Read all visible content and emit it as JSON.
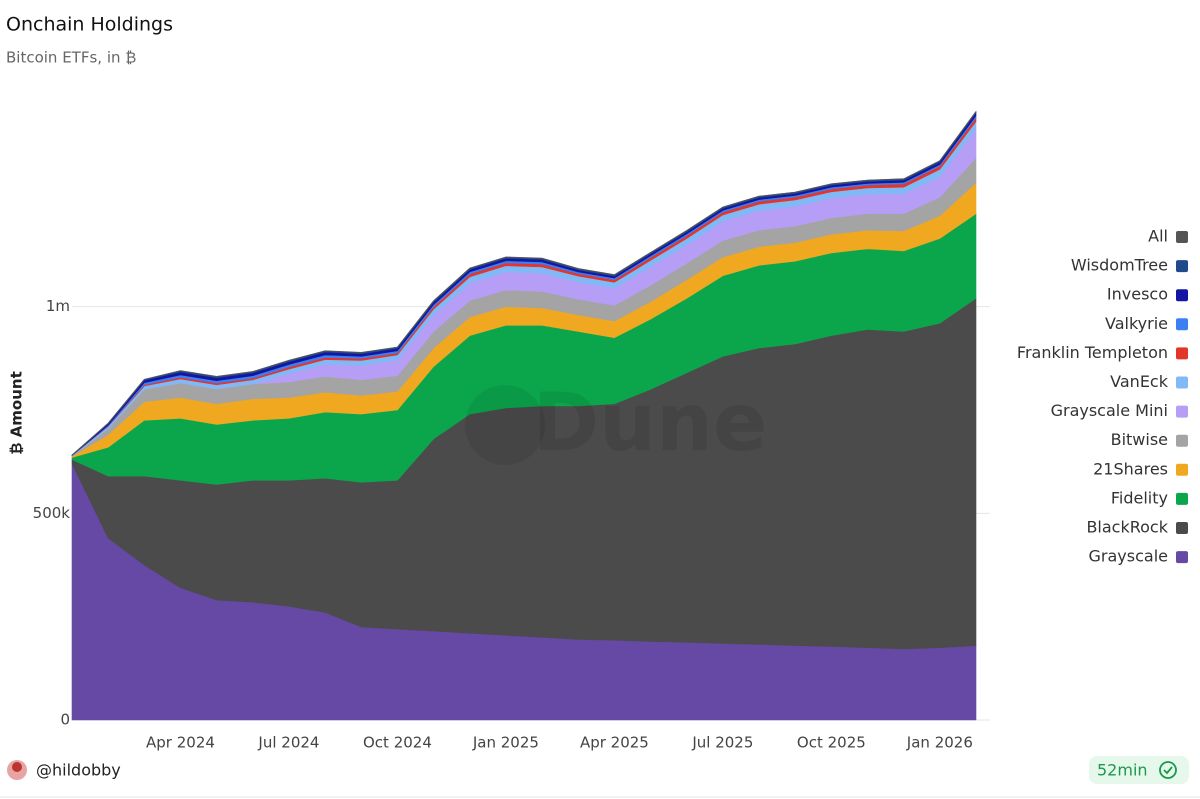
{
  "chart_data": {
    "type": "stacked-area",
    "title": "Onchain Holdings",
    "subtitle": "Bitcoin ETFs, in ₿",
    "y_label": "₿ Amount",
    "watermark": "Dune",
    "x": [
      "2024-01",
      "2024-02",
      "2024-03",
      "2024-04",
      "2024-05",
      "2024-06",
      "2024-07",
      "2024-08",
      "2024-09",
      "2024-10",
      "2024-11",
      "2024-12",
      "2025-01",
      "2025-02",
      "2025-03",
      "2025-04",
      "2025-05",
      "2025-06",
      "2025-07",
      "2025-08",
      "2025-09",
      "2025-10",
      "2025-11",
      "2025-12",
      "2026-01",
      "2026-02"
    ],
    "xlim": [
      "2024-01",
      "2026-02"
    ],
    "xticks": [
      {
        "value": "2024-04",
        "label": "Apr 2024"
      },
      {
        "value": "2024-07",
        "label": "Jul 2024"
      },
      {
        "value": "2024-10",
        "label": "Oct 2024"
      },
      {
        "value": "2025-01",
        "label": "Jan 2025"
      },
      {
        "value": "2025-04",
        "label": "Apr 2025"
      },
      {
        "value": "2025-07",
        "label": "Jul 2025"
      },
      {
        "value": "2025-10",
        "label": "Oct 2025"
      },
      {
        "value": "2026-01",
        "label": "Jan 2026"
      }
    ],
    "ylim": [
      0,
      1500000
    ],
    "yticks": [
      0,
      {
        "value": 500000,
        "label": "500k"
      },
      {
        "value": 1000000,
        "label": "1m"
      }
    ],
    "grid": true,
    "legend": "right",
    "series": [
      {
        "name": "Grayscale",
        "color": "#6549a5",
        "values": [
          620000,
          440000,
          375000,
          320000,
          290000,
          285000,
          275000,
          260000,
          225000,
          220000,
          215000,
          210000,
          205000,
          200000,
          195000,
          193000,
          190000,
          188000,
          185000,
          183000,
          180000,
          178000,
          175000,
          172000,
          175000,
          180000
        ]
      },
      {
        "name": "BlackRock",
        "color": "#4b4b4b",
        "values": [
          10000,
          150000,
          215000,
          260000,
          280000,
          295000,
          305000,
          325000,
          350000,
          360000,
          465000,
          530000,
          550000,
          560000,
          565000,
          572000,
          610000,
          652000,
          695000,
          717000,
          730000,
          752000,
          770000,
          768000,
          785000,
          840000
        ]
      },
      {
        "name": "Fidelity",
        "color": "#0ba64c",
        "values": [
          5000,
          70000,
          135000,
          150000,
          145000,
          145000,
          150000,
          160000,
          165000,
          170000,
          175000,
          190000,
          200000,
          195000,
          180000,
          160000,
          170000,
          180000,
          195000,
          200000,
          200000,
          200000,
          195000,
          195000,
          205000,
          205000
        ]
      },
      {
        "name": "21Shares",
        "color": "#f0a820",
        "values": [
          3000,
          30000,
          45000,
          50000,
          50000,
          52000,
          50000,
          48000,
          45000,
          45000,
          45000,
          45000,
          45000,
          42000,
          40000,
          40000,
          42000,
          45000,
          45000,
          45000,
          45000,
          45000,
          45000,
          48000,
          55000,
          75000
        ]
      },
      {
        "name": "Bitwise",
        "color": "#a4a4a4",
        "values": [
          1000,
          15000,
          30000,
          35000,
          36000,
          36000,
          38000,
          38000,
          38000,
          38000,
          40000,
          40000,
          40000,
          40000,
          38000,
          38000,
          40000,
          40000,
          40000,
          40000,
          40000,
          40000,
          40000,
          42000,
          45000,
          60000
        ]
      },
      {
        "name": "Grayscale Mini",
        "color": "#b69df6",
        "values": [
          0,
          0,
          0,
          0,
          0,
          0,
          20000,
          30000,
          35000,
          38000,
          40000,
          42000,
          44000,
          44000,
          42000,
          42000,
          45000,
          45000,
          47000,
          48000,
          48000,
          48000,
          47000,
          48000,
          50000,
          70000
        ]
      },
      {
        "name": "VanEck",
        "color": "#80b9f5",
        "values": [
          1000,
          5000,
          8000,
          10000,
          10000,
          10000,
          11000,
          11000,
          12000,
          12000,
          14000,
          15000,
          15000,
          15000,
          14000,
          14000,
          15000,
          15000,
          15000,
          15000,
          15000,
          15000,
          15000,
          16000,
          17000,
          18000
        ]
      },
      {
        "name": "Franklin Templeton",
        "color": "#e3362a",
        "values": [
          0,
          1000,
          3000,
          4000,
          4000,
          4000,
          5000,
          5000,
          5000,
          5000,
          6000,
          7000,
          7000,
          7000,
          6000,
          6000,
          7000,
          7000,
          7000,
          7000,
          7000,
          7000,
          7000,
          8000,
          8000,
          9000
        ]
      },
      {
        "name": "Valkyrie",
        "color": "#3b7ff2",
        "values": [
          0,
          2000,
          5000,
          6000,
          6000,
          6000,
          6000,
          6000,
          5000,
          5000,
          5000,
          5000,
          5000,
          5000,
          4000,
          4000,
          4000,
          4000,
          4000,
          4000,
          4000,
          4000,
          4000,
          4000,
          4000,
          5000
        ]
      },
      {
        "name": "Invesco",
        "color": "#1515a3",
        "values": [
          1000,
          4000,
          6000,
          7000,
          7000,
          7000,
          7000,
          7000,
          6000,
          6000,
          6000,
          6000,
          6000,
          6000,
          5000,
          5000,
          5000,
          5000,
          5000,
          5000,
          5000,
          5000,
          5000,
          5000,
          6000,
          7000
        ]
      },
      {
        "name": "WisdomTree",
        "color": "#1f4b8c",
        "values": [
          0,
          1000,
          2000,
          3000,
          3000,
          3000,
          3000,
          3000,
          3000,
          3000,
          3000,
          3000,
          3000,
          3000,
          3000,
          3000,
          3000,
          3000,
          3000,
          3000,
          3000,
          3000,
          3000,
          3000,
          3000,
          3000
        ]
      },
      {
        "name": "All",
        "color": "#555555",
        "line": true,
        "values": [
          641000,
          718000,
          824000,
          845000,
          831000,
          843000,
          870000,
          893000,
          889000,
          902000,
          1014000,
          1093000,
          1120000,
          1117000,
          1092000,
          1077000,
          1131000,
          1184000,
          1241000,
          1267000,
          1277000,
          1297000,
          1306000,
          1309000,
          1353000,
          1472000
        ]
      }
    ]
  },
  "footer": {
    "user": "@hildobby",
    "age": "52min"
  }
}
